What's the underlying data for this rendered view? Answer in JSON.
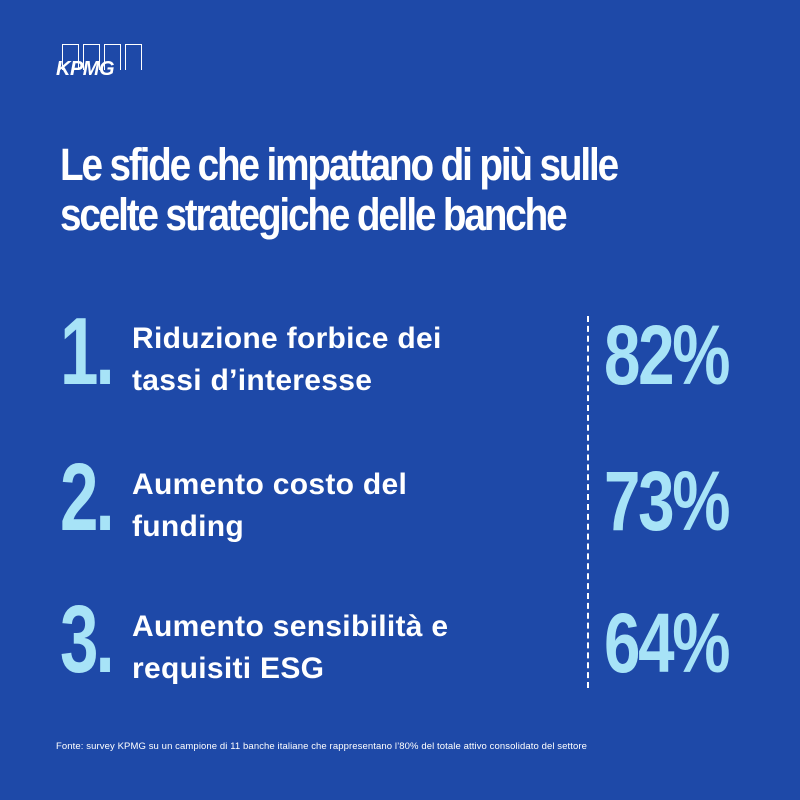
{
  "brand": {
    "logo_text": "KPMG",
    "bg_color": "#1e49a8",
    "accent_color": "#a7e3f7"
  },
  "title": {
    "line1": "Le sfide che impattano di più sulle",
    "line2": "scelte strategiche delle banche"
  },
  "items": [
    {
      "number": "1.",
      "label_line1": "Riduzione forbice dei",
      "label_line2": "tassi d’interesse",
      "percent": "82%"
    },
    {
      "number": "2.",
      "label_line1": "Aumento costo del",
      "label_line2": "funding",
      "percent": "73%"
    },
    {
      "number": "3.",
      "label_line1": "Aumento sensibilità e",
      "label_line2": "requisiti ESG",
      "percent": "64%"
    }
  ],
  "footer": "Fonte: survey KPMG su un campione di 11 banche italiane che rappresentano l’80% del totale attivo consolidato del settore"
}
